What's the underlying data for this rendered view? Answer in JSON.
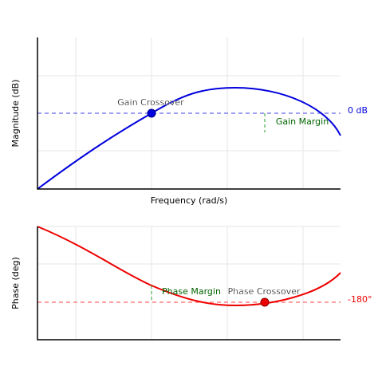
{
  "magnitude": {
    "ylabel": "Magnitude (dB)",
    "xlabel": "Frequency (rad/s)",
    "reference": "0 dB",
    "crossover": "Gain Crossover",
    "margin": "Gain Margin"
  },
  "phase": {
    "ylabel": "Phase (deg)",
    "reference": "-180°",
    "crossover": "Phase Crossover",
    "margin": "Phase Margin"
  }
}
